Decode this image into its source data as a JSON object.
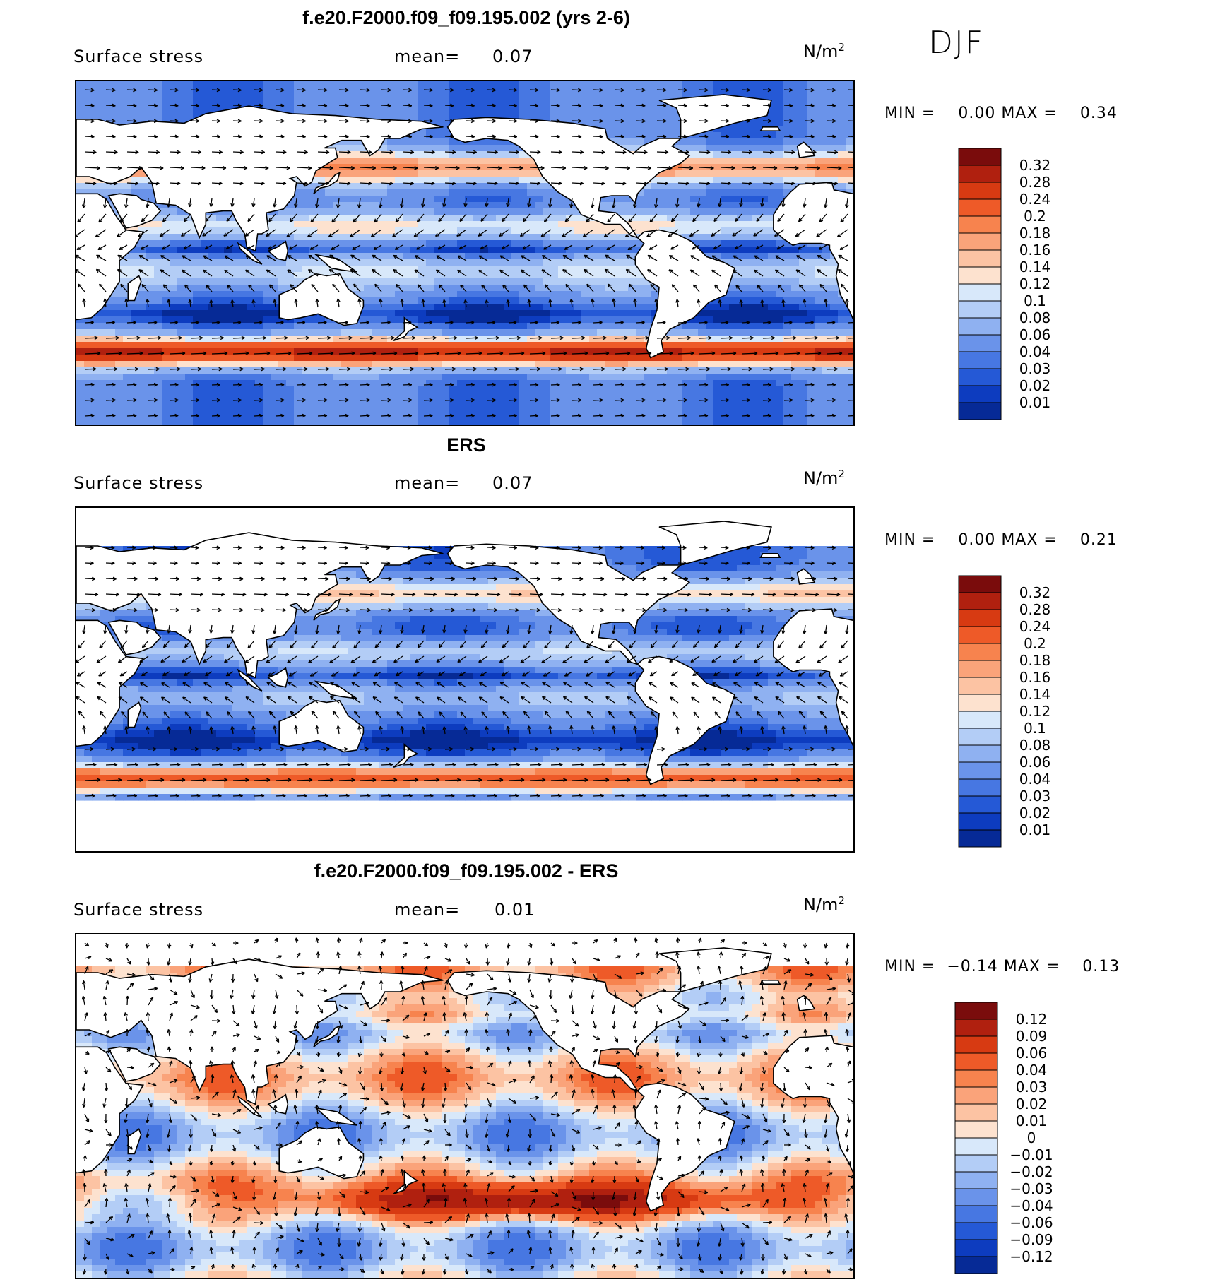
{
  "season": "DJF",
  "panels": [
    {
      "title": "f.e20.F2000.f09_f09.195.002 (yrs 2-6)",
      "variable": "Surface stress",
      "mean_label": "mean=",
      "mean_value": "0.07",
      "units": "N/m",
      "units_exp": "2",
      "min_label": "MIN =",
      "min_value": "0.00",
      "max_label": "MAX =",
      "max_value": "0.34",
      "kind": "abs",
      "levels": [
        "0.32",
        "0.28",
        "0.24",
        "0.2",
        "0.18",
        "0.16",
        "0.14",
        "0.12",
        "0.1",
        "0.08",
        "0.06",
        "0.04",
        "0.03",
        "0.02",
        "0.01"
      ],
      "colors": [
        "#7a0c0c",
        "#b0200f",
        "#d73a12",
        "#ee5a28",
        "#f7834e",
        "#faa37a",
        "#fcc3a3",
        "#fde2cf",
        "#d8e8fa",
        "#b3cdf6",
        "#8fb1f1",
        "#6a93ea",
        "#4777e2",
        "#2559d6",
        "#0d3cbf",
        "#062a96"
      ]
    },
    {
      "title": "ERS",
      "variable": "Surface stress",
      "mean_label": "mean=",
      "mean_value": "0.07",
      "units": "N/m",
      "units_exp": "2",
      "min_label": "MIN =",
      "min_value": "0.00",
      "max_label": "MAX =",
      "max_value": "0.21",
      "kind": "abs",
      "levels": [
        "0.32",
        "0.28",
        "0.24",
        "0.2",
        "0.18",
        "0.16",
        "0.14",
        "0.12",
        "0.1",
        "0.08",
        "0.06",
        "0.04",
        "0.03",
        "0.02",
        "0.01"
      ],
      "colors": [
        "#7a0c0c",
        "#b0200f",
        "#d73a12",
        "#ee5a28",
        "#f7834e",
        "#faa37a",
        "#fcc3a3",
        "#fde2cf",
        "#d8e8fa",
        "#b3cdf6",
        "#8fb1f1",
        "#6a93ea",
        "#4777e2",
        "#2559d6",
        "#0d3cbf",
        "#062a96"
      ]
    },
    {
      "title": "f.e20.F2000.f09_f09.195.002 - ERS",
      "variable": "Surface stress",
      "mean_label": "mean=",
      "mean_value": "0.01",
      "units": "N/m",
      "units_exp": "2",
      "min_label": "MIN =",
      "min_value": "−0.14",
      "max_label": "MAX =",
      "max_value": "0.13",
      "kind": "diff",
      "levels": [
        "0.12",
        "0.09",
        "0.06",
        "0.04",
        "0.03",
        "0.02",
        "0.01",
        "0",
        "−0.01",
        "−0.02",
        "−0.03",
        "−0.04",
        "−0.06",
        "−0.09",
        "−0.12"
      ],
      "colors": [
        "#7a0c0c",
        "#b0200f",
        "#d73a12",
        "#ee5a28",
        "#f7834e",
        "#faa37a",
        "#fcc3a3",
        "#fde2cf",
        "#d8e8fa",
        "#b3cdf6",
        "#8fb1f1",
        "#6a93ea",
        "#4777e2",
        "#2559d6",
        "#0d3cbf",
        "#062a96"
      ]
    }
  ]
}
